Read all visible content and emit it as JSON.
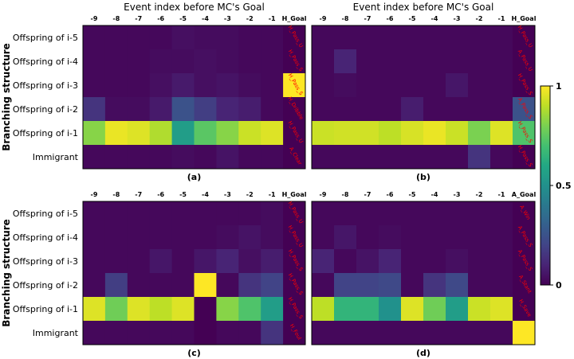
{
  "figure": {
    "xlabel": "Event index before MC's Goal",
    "ylabel": "Branching structure"
  },
  "chart_data": [
    {
      "type": "heatmap",
      "panel_label": "(a)",
      "x_labels": [
        "-9",
        "-8",
        "-7",
        "-6",
        "-5",
        "-4",
        "-3",
        "-2",
        "-1",
        "H_Goal"
      ],
      "y_labels": [
        "Offspring of i-5",
        "Offspring of i-4",
        "Offspring of i-3",
        "Offspring of i-2",
        "Offspring of i-1",
        "Immigrant"
      ],
      "annotations": [
        "H_Pass_U",
        "H_Pass_S",
        "H_Pass_S",
        "H_Dribble",
        "H_Pass_U",
        "A_Clear"
      ],
      "values": [
        [
          0.02,
          0.02,
          0.02,
          0.02,
          0.04,
          0.03,
          0.03,
          0.02,
          0.02,
          0.0
        ],
        [
          0.02,
          0.02,
          0.02,
          0.03,
          0.03,
          0.04,
          0.03,
          0.02,
          0.02,
          0.0
        ],
        [
          0.02,
          0.02,
          0.02,
          0.04,
          0.07,
          0.04,
          0.05,
          0.03,
          0.02,
          1.0
        ],
        [
          0.15,
          0.03,
          0.03,
          0.07,
          0.25,
          0.18,
          0.1,
          0.08,
          0.02,
          0.0
        ],
        [
          0.82,
          0.97,
          0.95,
          0.88,
          0.55,
          0.74,
          0.82,
          0.92,
          0.95,
          0.0
        ],
        [
          0.02,
          0.02,
          0.02,
          0.02,
          0.03,
          0.02,
          0.05,
          0.02,
          0.02,
          0.0
        ]
      ],
      "zlim": [
        0,
        1
      ]
    },
    {
      "type": "heatmap",
      "panel_label": "(b)",
      "x_labels": [
        "-9",
        "-8",
        "-7",
        "-6",
        "-5",
        "-4",
        "-3",
        "-2",
        "-1",
        "H_Goal"
      ],
      "y_labels": [
        "Offspring of i-5",
        "Offspring of i-4",
        "Offspring of i-3",
        "Offspring of i-2",
        "Offspring of i-1",
        "Immigrant"
      ],
      "annotations": [
        "H_Pass_U",
        "A_Pass_U",
        "H_Pass_S",
        "A_Pass_S",
        "H_Pass_S",
        "H_Pass_S"
      ],
      "values": [
        [
          0.02,
          0.02,
          0.02,
          0.02,
          0.02,
          0.02,
          0.02,
          0.02,
          0.02,
          0.0
        ],
        [
          0.02,
          0.1,
          0.02,
          0.02,
          0.02,
          0.02,
          0.02,
          0.02,
          0.02,
          0.0
        ],
        [
          0.02,
          0.03,
          0.02,
          0.02,
          0.02,
          0.02,
          0.06,
          0.02,
          0.02,
          0.0
        ],
        [
          0.02,
          0.02,
          0.02,
          0.02,
          0.08,
          0.02,
          0.02,
          0.02,
          0.02,
          0.25
        ],
        [
          0.92,
          0.93,
          0.93,
          0.9,
          0.94,
          0.97,
          0.92,
          0.8,
          0.95,
          0.72
        ],
        [
          0.02,
          0.02,
          0.02,
          0.02,
          0.02,
          0.02,
          0.02,
          0.15,
          0.02,
          0.0
        ]
      ],
      "zlim": [
        0,
        1
      ]
    },
    {
      "type": "heatmap",
      "panel_label": "(c)",
      "x_labels": [
        "-9",
        "-8",
        "-7",
        "-6",
        "-5",
        "-4",
        "-3",
        "-2",
        "-1",
        "H_Goal"
      ],
      "y_labels": [
        "Offspring of i-5",
        "Offspring of i-4",
        "Offspring of i-3",
        "Offspring of i-2",
        "Offspring of i-1",
        "Immigrant"
      ],
      "annotations": [
        "H_Pass_U",
        "H_Pass_U",
        "H_Pass_S",
        "H_Pass_S",
        "H_Pass_S",
        "H_Foul"
      ],
      "values": [
        [
          0.02,
          0.02,
          0.02,
          0.02,
          0.02,
          0.02,
          0.02,
          0.02,
          0.03,
          0.0
        ],
        [
          0.02,
          0.02,
          0.02,
          0.02,
          0.02,
          0.02,
          0.03,
          0.05,
          0.03,
          0.0
        ],
        [
          0.02,
          0.02,
          0.02,
          0.06,
          0.02,
          0.06,
          0.1,
          0.04,
          0.08,
          0.0
        ],
        [
          0.02,
          0.18,
          0.02,
          0.02,
          0.02,
          1.0,
          0.02,
          0.15,
          0.2,
          0.0
        ],
        [
          0.95,
          0.78,
          0.95,
          0.9,
          0.95,
          0.0,
          0.82,
          0.72,
          0.55,
          0.0
        ],
        [
          0.02,
          0.02,
          0.02,
          0.02,
          0.02,
          0.0,
          0.02,
          0.02,
          0.15,
          0.0
        ]
      ],
      "zlim": [
        0,
        1
      ]
    },
    {
      "type": "heatmap",
      "panel_label": "(d)",
      "x_labels": [
        "-9",
        "-8",
        "-7",
        "-6",
        "-5",
        "-4",
        "-3",
        "-2",
        "-1",
        "A_Goal"
      ],
      "y_labels": [
        "Offspring of i-5",
        "Offspring of i-4",
        "Offspring of i-3",
        "Offspring of i-2",
        "Offspring of i-1",
        "Immigrant"
      ],
      "annotations": [
        "A_Win",
        "A_Pass_S",
        "A_Pass_S",
        "A_Stant",
        "H_Save",
        ""
      ],
      "values": [
        [
          0.02,
          0.02,
          0.02,
          0.02,
          0.02,
          0.02,
          0.02,
          0.02,
          0.02,
          0.0
        ],
        [
          0.02,
          0.06,
          0.02,
          0.03,
          0.02,
          0.02,
          0.02,
          0.02,
          0.02,
          0.0
        ],
        [
          0.1,
          0.02,
          0.05,
          0.1,
          0.02,
          0.02,
          0.04,
          0.02,
          0.02,
          0.0
        ],
        [
          0.02,
          0.2,
          0.2,
          0.22,
          0.02,
          0.15,
          0.22,
          0.02,
          0.02,
          0.0
        ],
        [
          0.9,
          0.65,
          0.65,
          0.5,
          0.95,
          0.78,
          0.55,
          0.92,
          0.95,
          0.0
        ],
        [
          0.02,
          0.02,
          0.02,
          0.02,
          0.02,
          0.02,
          0.02,
          0.02,
          0.02,
          1.0
        ]
      ],
      "zlim": [
        0,
        1
      ]
    }
  ],
  "colorbar": {
    "colormap": "viridis",
    "ticks": [
      "0",
      "0.5",
      "1"
    ],
    "tick_values": [
      0,
      0.5,
      1
    ]
  }
}
